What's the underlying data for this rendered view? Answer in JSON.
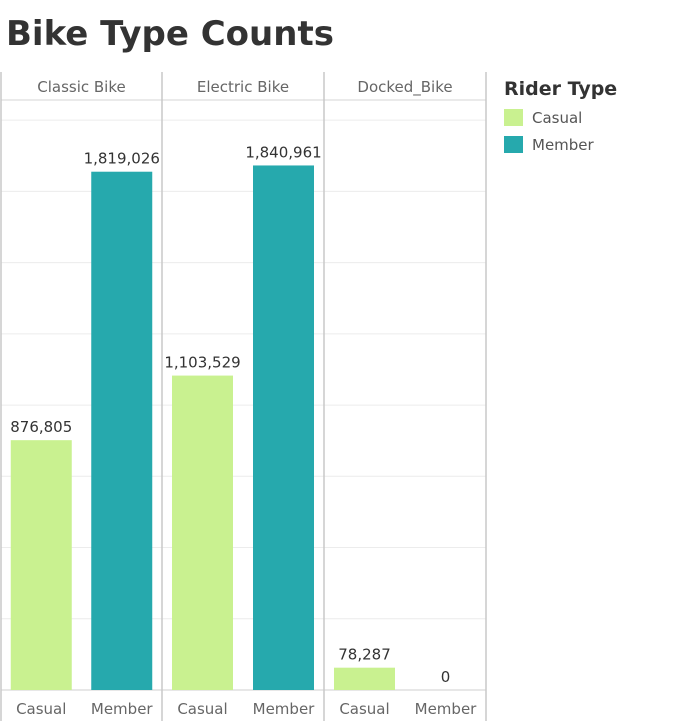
{
  "title": "Bike Type Counts",
  "legend": {
    "title": "Rider Type",
    "items": [
      {
        "label": "Casual",
        "color": "#c9f190"
      },
      {
        "label": "Member",
        "color": "#26a9ad"
      }
    ]
  },
  "chart_data": {
    "type": "bar",
    "title": "Bike Type Counts",
    "panels": [
      "Classic Bike",
      "Electric Bike",
      "Docked_Bike"
    ],
    "categories": [
      "Casual",
      "Member"
    ],
    "series": [
      {
        "name": "Classic Bike",
        "values": [
          876805,
          1819026
        ],
        "labels": [
          "876,805",
          "1,819,026"
        ]
      },
      {
        "name": "Electric Bike",
        "values": [
          1103529,
          1840961
        ],
        "labels": [
          "1,103,529",
          "1,840,961"
        ]
      },
      {
        "name": "Docked_Bike",
        "values": [
          78287,
          0
        ],
        "labels": [
          "78,287",
          "0"
        ]
      }
    ],
    "colors": {
      "Casual": "#c9f190",
      "Member": "#26a9ad"
    },
    "ylim": [
      0,
      2050000
    ],
    "grid": true,
    "legend_position": "right"
  }
}
